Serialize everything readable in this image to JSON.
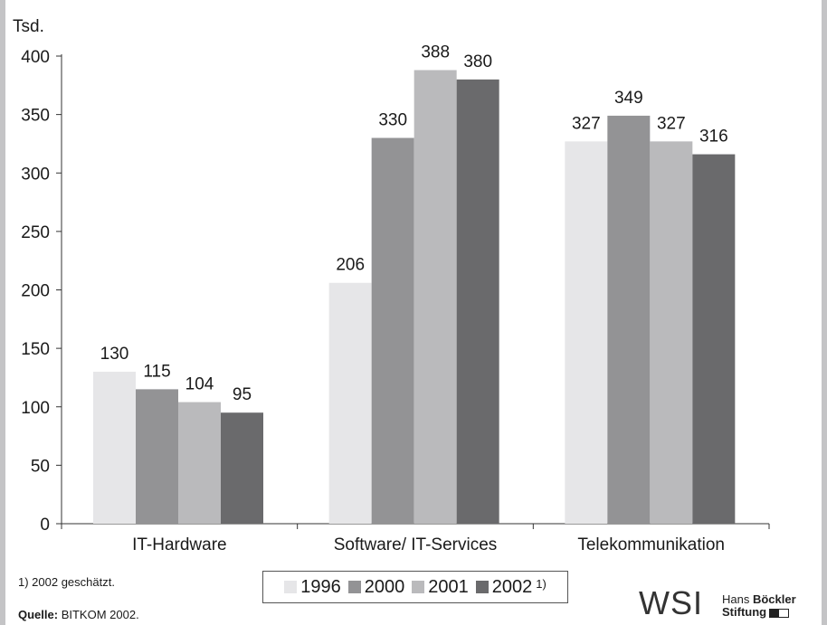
{
  "chart_data": {
    "type": "bar",
    "ylabel": "Tsd.",
    "ylim": [
      0,
      400
    ],
    "yticks": [
      0,
      50,
      100,
      150,
      200,
      250,
      300,
      350,
      400
    ],
    "categories": [
      "IT-Hardware",
      "Software/ IT-Services",
      "Telekommunikation"
    ],
    "series": [
      {
        "name": "1996",
        "color": "#e6e6e8",
        "values": [
          130,
          206,
          327
        ]
      },
      {
        "name": "2000",
        "color": "#939395",
        "values": [
          115,
          330,
          349
        ]
      },
      {
        "name": "2001",
        "color": "#bababc",
        "values": [
          104,
          388,
          327
        ]
      },
      {
        "name": "2002",
        "color": "#6a6a6c",
        "values": [
          95,
          380,
          316
        ]
      }
    ],
    "legend_suffix": "1)",
    "legend_placement": "bottom-center",
    "grid": false
  },
  "footnote": "1) 2002 geschätzt.",
  "source_label": "Quelle:",
  "source_text": "BITKOM 2002.",
  "logo": {
    "wsi": "WSI",
    "hbs_line1_a": "Hans ",
    "hbs_line1_b": "Böckler",
    "hbs_line2": "Stiftung"
  }
}
